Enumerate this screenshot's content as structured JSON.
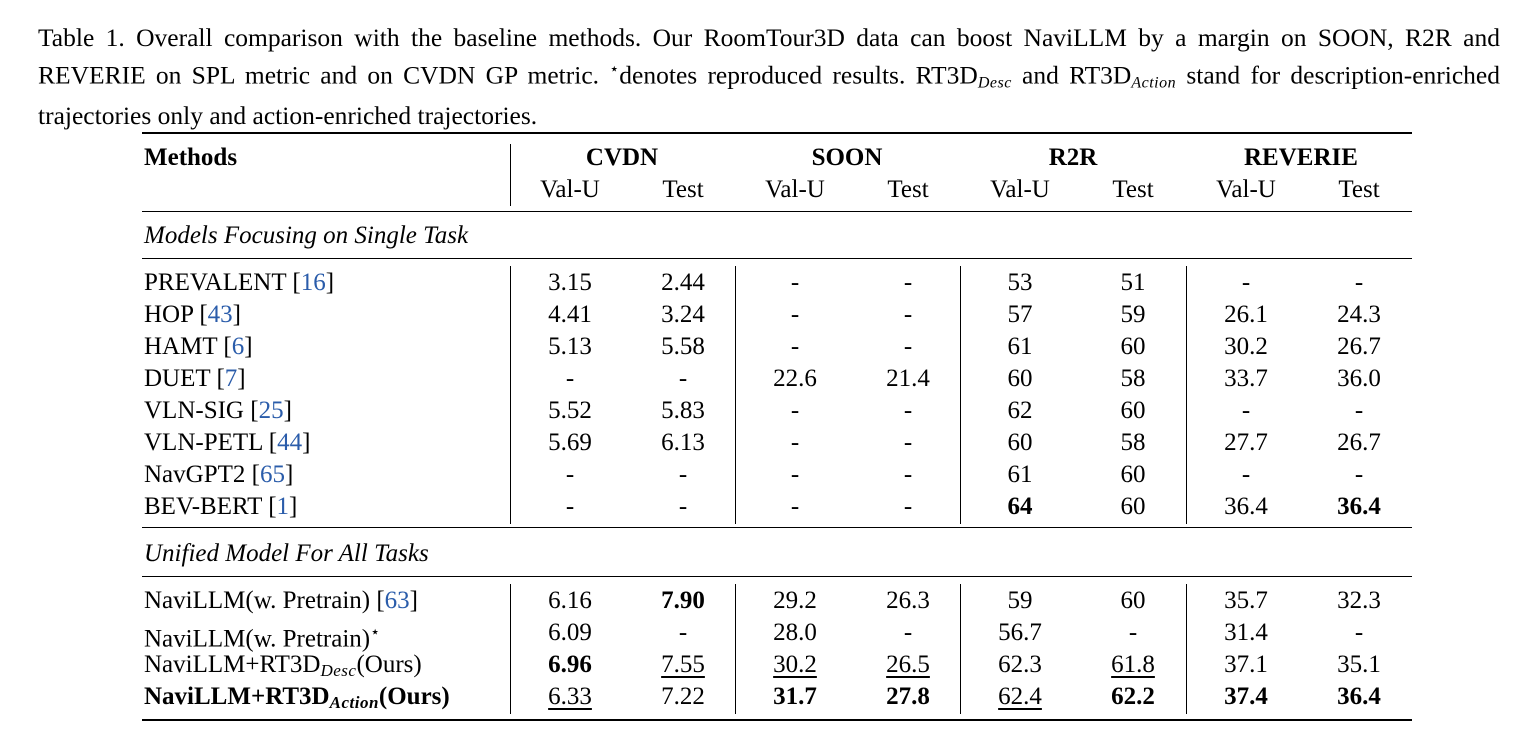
{
  "caption": {
    "part1": "Table 1. Overall comparison with the baseline methods. Our RoomTour3D data can boost NaviLLM by a margin on SOON, R2R and REVERIE on SPL metric and on CVDN GP metric. ",
    "star": "⋆",
    "part2": "denotes reproduced results. RT3D",
    "desc_sub": "Desc",
    "part3": " and RT3D",
    "action_sub": "Action",
    "part4": " stand for description-enriched trajectories only and action-enriched trajectories."
  },
  "table": {
    "methods_header": "Methods",
    "groups": [
      "CVDN",
      "SOON",
      "R2R",
      "REVERIE"
    ],
    "subcols": [
      "Val-U",
      "Test",
      "Val-U",
      "Test",
      "Val-U",
      "Test",
      "Val-U",
      "Test"
    ],
    "section1": "Models Focusing on Single Task",
    "section2": "Unified Model For All Tasks",
    "rows1": [
      {
        "name": "PREVALENT",
        "cite": "16",
        "values": [
          "3.15",
          "2.44",
          "-",
          "-",
          "53",
          "51",
          "-",
          "-"
        ]
      },
      {
        "name": "HOP",
        "cite": "43",
        "values": [
          "4.41",
          "3.24",
          "-",
          "-",
          "57",
          "59",
          "26.1",
          "24.3"
        ]
      },
      {
        "name": "HAMT",
        "cite": "6",
        "values": [
          "5.13",
          "5.58",
          "-",
          "-",
          "61",
          "60",
          "30.2",
          "26.7"
        ]
      },
      {
        "name": "DUET",
        "cite": "7",
        "values": [
          "-",
          "-",
          "22.6",
          "21.4",
          "60",
          "58",
          "33.7",
          "36.0"
        ]
      },
      {
        "name": "VLN-SIG",
        "cite": "25",
        "values": [
          "5.52",
          "5.83",
          "-",
          "-",
          "62",
          "60",
          "-",
          "-"
        ]
      },
      {
        "name": "VLN-PETL",
        "cite": "44",
        "values": [
          "5.69",
          "6.13",
          "-",
          "-",
          "60",
          "58",
          "27.7",
          "26.7"
        ]
      },
      {
        "name": "NavGPT2",
        "cite": "65",
        "values": [
          "-",
          "-",
          "-",
          "-",
          "61",
          "60",
          "-",
          "-"
        ]
      },
      {
        "name": "BEV-BERT",
        "cite": "1",
        "values": [
          "-",
          "-",
          "-",
          "-",
          "64",
          "60",
          "36.4",
          "36.4"
        ]
      }
    ],
    "row_pretrain": {
      "name": "NaviLLM(w. Pretrain)",
      "cite": "63",
      "values": [
        "6.16",
        "7.90",
        "29.2",
        "26.3",
        "59",
        "60",
        "35.7",
        "32.3"
      ]
    },
    "row_repro": {
      "name": "NaviLLM(w. Pretrain)",
      "star": "⋆",
      "values": [
        "6.09",
        "-",
        "28.0",
        "-",
        "56.7",
        "-",
        "31.4",
        "-"
      ]
    },
    "row_desc": {
      "name": "NaviLLM+RT3D",
      "sub": "Desc",
      "suffix": "(Ours)",
      "values": [
        "6.96",
        "7.55",
        "30.2",
        "26.5",
        "62.3",
        "61.8",
        "37.1",
        "35.1"
      ]
    },
    "row_action": {
      "name": "NaviLLM+RT3D",
      "sub": "Action",
      "suffix": "(Ours)",
      "values": [
        "6.33",
        "7.22",
        "31.7",
        "27.8",
        "62.4",
        "62.2",
        "37.4",
        "36.4"
      ]
    }
  }
}
